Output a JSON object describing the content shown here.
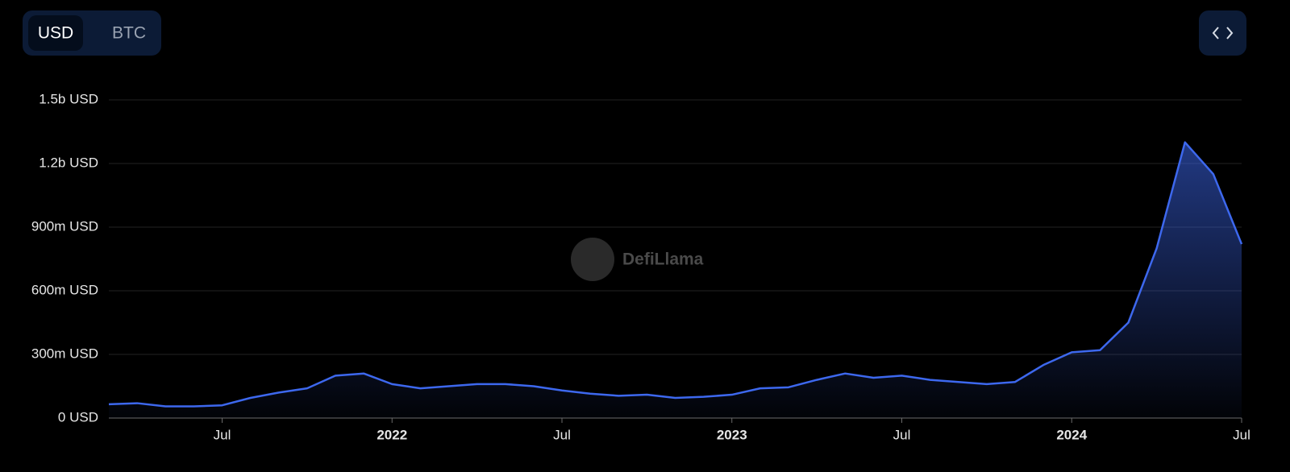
{
  "toggle": [
    "USD",
    "BTC"
  ],
  "watermark": "DefiLlama",
  "chart_data": {
    "type": "area",
    "x": [
      "2021-03",
      "2021-04",
      "2021-05",
      "2021-06",
      "2021-07",
      "2021-08",
      "2021-09",
      "2021-10",
      "2021-11",
      "2021-12",
      "2022-01",
      "2022-02",
      "2022-03",
      "2022-04",
      "2022-05",
      "2022-06",
      "2022-07",
      "2022-08",
      "2022-09",
      "2022-10",
      "2022-11",
      "2022-12",
      "2023-01",
      "2023-02",
      "2023-03",
      "2023-04",
      "2023-05",
      "2023-06",
      "2023-07",
      "2023-08",
      "2023-09",
      "2023-10",
      "2023-11",
      "2023-12",
      "2024-01",
      "2024-02",
      "2024-03",
      "2024-04",
      "2024-05",
      "2024-06",
      "2024-07"
    ],
    "series": [
      {
        "name": "USD",
        "color": "#3d68ee",
        "values": [
          65000000,
          70000000,
          55000000,
          55000000,
          60000000,
          95000000,
          120000000,
          140000000,
          200000000,
          210000000,
          160000000,
          140000000,
          150000000,
          160000000,
          160000000,
          150000000,
          130000000,
          115000000,
          105000000,
          110000000,
          95000000,
          100000000,
          110000000,
          140000000,
          145000000,
          180000000,
          210000000,
          190000000,
          200000000,
          180000000,
          170000000,
          160000000,
          170000000,
          250000000,
          310000000,
          320000000,
          450000000,
          800000000,
          1300000000,
          1150000000,
          820000000
        ]
      }
    ],
    "xlim": [
      "2021-03",
      "2024-07"
    ],
    "xticks": [
      {
        "value": "2021-07",
        "label": "Jul"
      },
      {
        "value": "2022-01",
        "label": "2022"
      },
      {
        "value": "2022-07",
        "label": "Jul"
      },
      {
        "value": "2023-01",
        "label": "2023"
      },
      {
        "value": "2023-07",
        "label": "Jul"
      },
      {
        "value": "2024-01",
        "label": "2024"
      },
      {
        "value": "2024-07",
        "label": "Jul"
      }
    ],
    "ylim": [
      0,
      1500000000
    ],
    "yticks": [
      {
        "value": 0,
        "label": "0 USD"
      },
      {
        "value": 300000000,
        "label": "300m USD"
      },
      {
        "value": 600000000,
        "label": "600m USD"
      },
      {
        "value": 900000000,
        "label": "900m USD"
      },
      {
        "value": 1200000000,
        "label": "1.2b USD"
      },
      {
        "value": 1500000000,
        "label": "1.5b USD"
      }
    ],
    "grid": true
  }
}
